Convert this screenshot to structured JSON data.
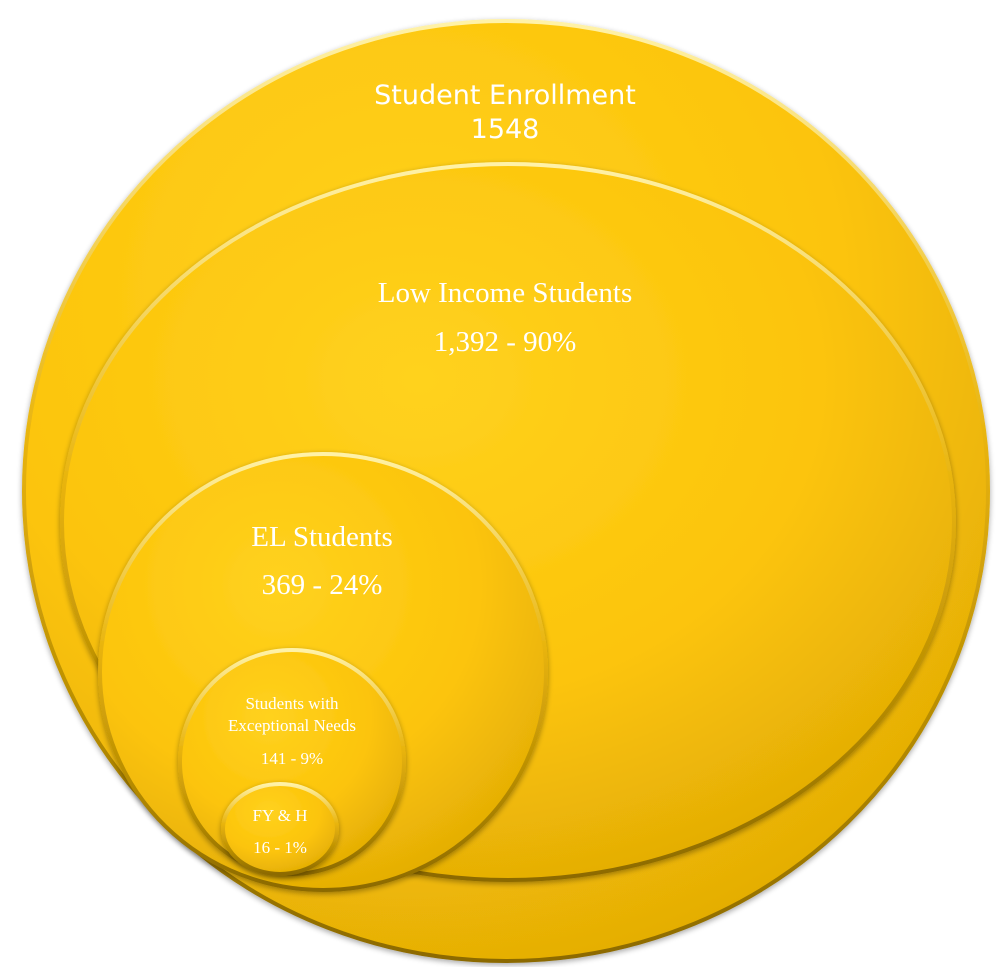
{
  "circles": [
    {
      "id": "student-enrollment",
      "label": "Student Enrollment",
      "value": "1548"
    },
    {
      "id": "low-income-students",
      "label": "Low Income Students",
      "value": "1,392 - 90%"
    },
    {
      "id": "el-students",
      "label": "EL Students",
      "value": "369 - 24%"
    },
    {
      "id": "exceptional-needs",
      "label_line1": "Students with",
      "label_line2": "Exceptional Needs",
      "value": "141 - 9%"
    },
    {
      "id": "fy-h",
      "label": "FY & H",
      "value": "16 - 1%"
    }
  ],
  "colors": {
    "fill_light": "#FFCF1A",
    "fill_mid": "#FCC40A",
    "fill_dark": "#DBA603",
    "edge": "#A07800",
    "text": "#FFFFFF"
  }
}
